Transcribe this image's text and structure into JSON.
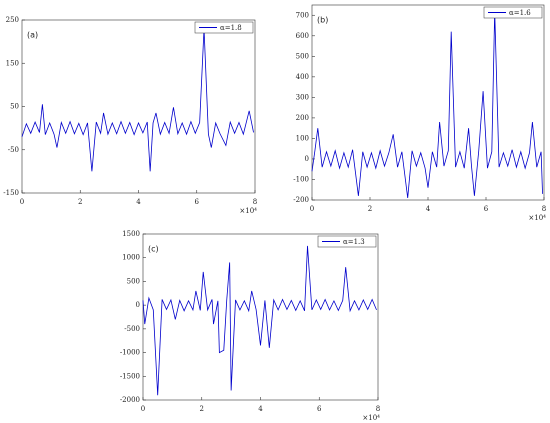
{
  "chart_data": [
    {
      "type": "line",
      "panel_label": "(a)",
      "legend": "upper right",
      "x_multiplier": "×10⁴",
      "x": [
        0,
        1500,
        3000,
        4500,
        6000,
        7000,
        8000,
        9500,
        11000,
        12000,
        13500,
        15000,
        16500,
        18000,
        19500,
        21000,
        22500,
        24000,
        25500,
        27000,
        28000,
        29500,
        31000,
        32500,
        34000,
        35500,
        37000,
        38500,
        40000,
        41500,
        43000,
        44000,
        45000,
        46000,
        47500,
        49000,
        50500,
        52000,
        53500,
        55000,
        56500,
        58000,
        59500,
        61000,
        62500,
        64000,
        65000,
        66500,
        68000,
        70000,
        71500,
        73000,
        74500,
        76000,
        78000,
        79500
      ],
      "series": [
        {
          "name": "α=1.8",
          "color": "#0000cc",
          "values": [
            -20,
            10,
            -12,
            14,
            -10,
            55,
            -15,
            12,
            -14,
            -45,
            13,
            -12,
            15,
            -13,
            11,
            -15,
            12,
            -100,
            14,
            -12,
            35,
            -14,
            12,
            -13,
            15,
            -12,
            13,
            -15,
            12,
            -11,
            14,
            -100,
            12,
            35,
            -14,
            13,
            -12,
            48,
            -13,
            12,
            -14,
            15,
            -12,
            13,
            230,
            -14,
            -45,
            12,
            -13,
            -40,
            14,
            -12,
            13,
            -14,
            40,
            -10
          ]
        }
      ],
      "xlim": [
        0,
        80000
      ],
      "ylim": [
        -150,
        250
      ],
      "xticks": [
        {
          "value": 0,
          "label": "0"
        },
        {
          "value": 20000,
          "label": "2"
        },
        {
          "value": 40000,
          "label": "4"
        },
        {
          "value": 60000,
          "label": "6"
        },
        {
          "value": 80000,
          "label": "8"
        }
      ],
      "yticks": [
        -150,
        -50,
        50,
        150,
        250
      ]
    },
    {
      "type": "line",
      "panel_label": "(b)",
      "legend": "upper right",
      "x_multiplier": "×10⁴",
      "x": [
        0,
        1000,
        2000,
        3500,
        5000,
        6500,
        8000,
        9500,
        11000,
        12500,
        14000,
        16000,
        17500,
        19000,
        20500,
        22000,
        23500,
        25000,
        26500,
        28000,
        29500,
        31000,
        33000,
        34500,
        36000,
        37500,
        39000,
        40000,
        41500,
        43000,
        44000,
        45500,
        47000,
        48000,
        49500,
        51000,
        52500,
        54000,
        55000,
        56000,
        57500,
        59000,
        60500,
        62000,
        63000,
        64500,
        66000,
        67500,
        69000,
        70500,
        72000,
        73500,
        75000,
        76000,
        77500,
        79000,
        79500
      ],
      "series": [
        {
          "name": "α=1.6",
          "color": "#0000cc",
          "values": [
            -60,
            40,
            150,
            -40,
            35,
            -35,
            40,
            -45,
            30,
            -40,
            45,
            -180,
            35,
            -40,
            30,
            -45,
            40,
            -35,
            30,
            120,
            -40,
            35,
            -190,
            40,
            -35,
            30,
            -45,
            -140,
            35,
            -40,
            180,
            -35,
            40,
            620,
            -40,
            35,
            -45,
            150,
            -35,
            -180,
            40,
            330,
            -45,
            35,
            720,
            -40,
            30,
            -35,
            45,
            -40,
            35,
            -45,
            30,
            180,
            -40,
            35,
            -170
          ]
        }
      ],
      "xlim": [
        0,
        80000
      ],
      "ylim": [
        -200,
        750
      ],
      "xticks": [
        {
          "value": 0,
          "label": "0"
        },
        {
          "value": 20000,
          "label": "2"
        },
        {
          "value": 40000,
          "label": "4"
        },
        {
          "value": 60000,
          "label": "6"
        },
        {
          "value": 80000,
          "label": "8"
        }
      ],
      "yticks": [
        -200,
        -100,
        0,
        100,
        200,
        300,
        400,
        500,
        600,
        700
      ]
    },
    {
      "type": "line",
      "panel_label": "(c)",
      "legend": "upper right",
      "x_multiplier": "×10⁴",
      "x": [
        0,
        600,
        2000,
        3500,
        5000,
        6500,
        8000,
        9500,
        11000,
        12500,
        14000,
        15500,
        17000,
        18000,
        19500,
        20500,
        22000,
        23500,
        24000,
        25500,
        26000,
        27500,
        28500,
        29500,
        30000,
        31500,
        33000,
        34500,
        36000,
        37000,
        38500,
        40000,
        41500,
        43000,
        44500,
        46000,
        47500,
        49000,
        50500,
        52000,
        53500,
        55000,
        56000,
        57500,
        59000,
        60500,
        62000,
        63500,
        65000,
        66500,
        68000,
        69000,
        70500,
        72000,
        73500,
        75000,
        76500,
        78000,
        79500
      ],
      "series": [
        {
          "name": "α=1.3",
          "color": "#0000cc",
          "values": [
            100,
            -400,
            150,
            -100,
            -1900,
            120,
            -90,
            110,
            -300,
            100,
            -120,
            90,
            -100,
            300,
            -110,
            700,
            -100,
            120,
            -400,
            90,
            -1000,
            -950,
            100,
            900,
            -1800,
            110,
            -100,
            90,
            -120,
            300,
            -90,
            -850,
            100,
            -900,
            110,
            -100,
            120,
            -90,
            100,
            -110,
            90,
            -120,
            1250,
            -100,
            110,
            -90,
            120,
            -100,
            90,
            -110,
            100,
            800,
            -120,
            90,
            -100,
            110,
            -90,
            120,
            -100
          ]
        }
      ],
      "xlim": [
        0,
        80000
      ],
      "ylim": [
        -2000,
        1500
      ],
      "xticks": [
        {
          "value": 0,
          "label": "0"
        },
        {
          "value": 20000,
          "label": "2"
        },
        {
          "value": 40000,
          "label": "4"
        },
        {
          "value": 60000,
          "label": "6"
        },
        {
          "value": 80000,
          "label": "8"
        }
      ],
      "yticks": [
        -2000,
        -1500,
        -1000,
        -500,
        0,
        500,
        1000,
        1500
      ]
    }
  ]
}
